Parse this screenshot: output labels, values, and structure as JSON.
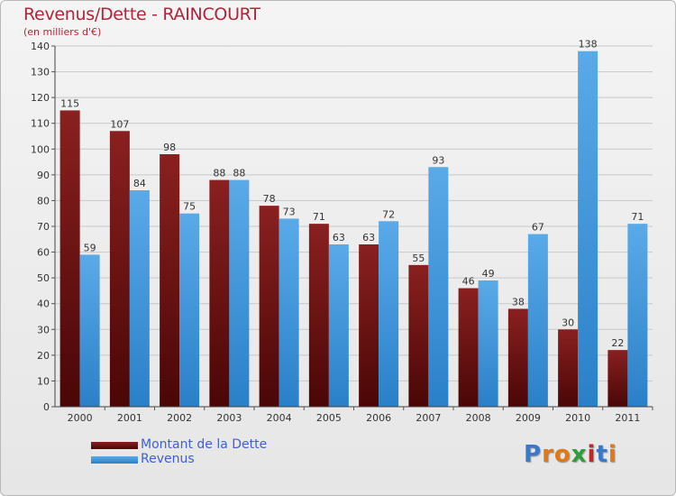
{
  "header": {
    "title": "Revenus/Dette - RAINCOURT",
    "subtitle": "(en milliers d'€)"
  },
  "legend": {
    "debt_label": "Montant de la Dette",
    "revenue_label": "Revenus"
  },
  "logo": {
    "letters": [
      "P",
      "r",
      "o",
      "x",
      "i",
      "t",
      "i"
    ],
    "colors": [
      "#3a78c8",
      "#e07818",
      "#e07818",
      "#2e9e3a",
      "#c02828",
      "#3a78c8",
      "#e07818"
    ]
  },
  "colors": {
    "debt_top": "#8a2020",
    "debt_bottom": "#4a0606",
    "revenue_top": "#5aaae8",
    "revenue_bottom": "#2a80c8",
    "title": "#b3243a",
    "legend_text": "#3f5fd8"
  },
  "chart_data": {
    "type": "bar",
    "title": "Revenus/Dette - RAINCOURT",
    "subtitle": "(en milliers d'€)",
    "xlabel": "",
    "ylabel": "",
    "ylim": [
      0,
      140
    ],
    "yticks": [
      0,
      10,
      20,
      30,
      40,
      50,
      60,
      70,
      80,
      90,
      100,
      110,
      120,
      130,
      140
    ],
    "grid": true,
    "legend_position": "bottom-left",
    "categories": [
      "2000",
      "2001",
      "2002",
      "2003",
      "2004",
      "2005",
      "2006",
      "2007",
      "2008",
      "2009",
      "2010",
      "2011"
    ],
    "series": [
      {
        "name": "Montant de la Dette",
        "values": [
          115,
          107,
          98,
          88,
          78,
          71,
          63,
          55,
          46,
          38,
          30,
          22
        ]
      },
      {
        "name": "Revenus",
        "values": [
          59,
          84,
          75,
          88,
          73,
          63,
          72,
          93,
          49,
          67,
          138,
          71
        ]
      }
    ]
  }
}
